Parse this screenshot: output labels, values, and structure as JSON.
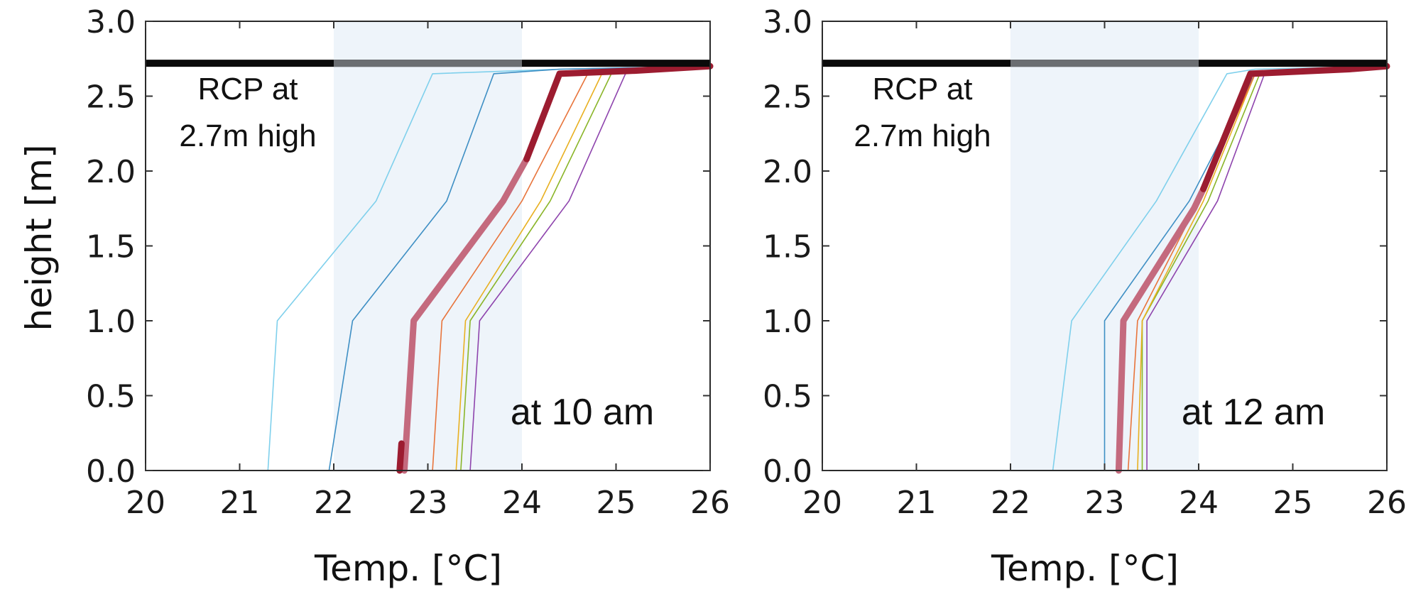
{
  "chart_data": [
    {
      "type": "line",
      "xlabel": "Temp. [°C]",
      "ylabel": "height [m]",
      "xlim": [
        20,
        26
      ],
      "ylim": [
        0,
        3.0
      ],
      "xticks": [
        "20",
        "21",
        "22",
        "23",
        "24",
        "25",
        "26"
      ],
      "yticks": [
        "0.0",
        "0.5",
        "1.0",
        "1.5",
        "2.0",
        "2.5",
        "3.0"
      ],
      "comfort_band": [
        22,
        24
      ],
      "ceiling_height": 2.72,
      "annotation": "RCP at 2.7m high",
      "time_label": "at 10 am",
      "series": [
        {
          "color": "#7fd0ec",
          "width": 1.6,
          "points": [
            [
              21.3,
              0.0
            ],
            [
              21.4,
              1.0
            ],
            [
              22.45,
              1.8
            ],
            [
              23.05,
              2.65
            ],
            [
              24.4,
              2.68
            ],
            [
              26.0,
              2.7
            ]
          ]
        },
        {
          "color": "#3e8fc4",
          "width": 1.6,
          "points": [
            [
              21.95,
              0.0
            ],
            [
              22.2,
              1.0
            ],
            [
              23.2,
              1.8
            ],
            [
              23.7,
              2.65
            ],
            [
              24.4,
              2.68
            ],
            [
              26.0,
              2.7
            ]
          ]
        },
        {
          "color": "#8e44ad",
          "width": 1.6,
          "points": [
            [
              23.45,
              0.0
            ],
            [
              23.55,
              1.0
            ],
            [
              24.5,
              1.8
            ],
            [
              25.1,
              2.65
            ],
            [
              25.5,
              2.68
            ],
            [
              26.0,
              2.7
            ]
          ]
        },
        {
          "color": "#8ab528",
          "width": 1.6,
          "points": [
            [
              23.35,
              0.0
            ],
            [
              23.45,
              1.0
            ],
            [
              24.3,
              1.8
            ],
            [
              24.95,
              2.65
            ],
            [
              25.5,
              2.68
            ],
            [
              26.0,
              2.7
            ]
          ]
        },
        {
          "color": "#e8b020",
          "width": 1.6,
          "points": [
            [
              23.3,
              0.0
            ],
            [
              23.4,
              1.0
            ],
            [
              24.2,
              1.8
            ],
            [
              24.85,
              2.65
            ],
            [
              25.5,
              2.68
            ],
            [
              26.0,
              2.7
            ]
          ]
        },
        {
          "color": "#e8743b",
          "width": 1.6,
          "points": [
            [
              23.05,
              0.0
            ],
            [
              23.15,
              1.0
            ],
            [
              24.0,
              1.8
            ],
            [
              24.7,
              2.65
            ],
            [
              25.5,
              2.68
            ],
            [
              26.0,
              2.7
            ]
          ]
        },
        {
          "color": "#c46a7e",
          "width": 9,
          "points": [
            [
              22.75,
              0.0
            ],
            [
              22.85,
              1.0
            ],
            [
              23.8,
              1.8
            ],
            [
              24.05,
              2.08
            ]
          ]
        },
        {
          "color": "#9c1c30",
          "width": 9,
          "points": [
            [
              22.7,
              0.0
            ],
            [
              22.72,
              0.18
            ]
          ]
        },
        {
          "color": "#9c1c30",
          "width": 9,
          "points": [
            [
              24.05,
              2.08
            ],
            [
              24.4,
              2.65
            ],
            [
              25.2,
              2.67
            ],
            [
              26.0,
              2.7
            ]
          ]
        }
      ]
    },
    {
      "type": "line",
      "xlabel": "Temp. [°C]",
      "ylabel": "",
      "xlim": [
        20,
        26
      ],
      "ylim": [
        0,
        3.0
      ],
      "xticks": [
        "20",
        "21",
        "22",
        "23",
        "24",
        "25",
        "26"
      ],
      "yticks": [
        "0.0",
        "0.5",
        "1.0",
        "1.5",
        "2.0",
        "2.5",
        "3.0"
      ],
      "comfort_band": [
        22,
        24
      ],
      "ceiling_height": 2.72,
      "annotation": "RCP at 2.7m high",
      "time_label": "at 12 am",
      "series": [
        {
          "color": "#7fd0ec",
          "width": 1.6,
          "points": [
            [
              22.45,
              0.0
            ],
            [
              22.65,
              1.0
            ],
            [
              23.55,
              1.8
            ],
            [
              24.3,
              2.65
            ],
            [
              24.6,
              2.68
            ],
            [
              26.0,
              2.7
            ]
          ]
        },
        {
          "color": "#3e8fc4",
          "width": 1.6,
          "points": [
            [
              23.0,
              0.0
            ],
            [
              23.0,
              1.0
            ],
            [
              23.9,
              1.8
            ],
            [
              24.6,
              2.65
            ],
            [
              25.5,
              2.68
            ],
            [
              26.0,
              2.7
            ]
          ]
        },
        {
          "color": "#8e44ad",
          "width": 1.6,
          "points": [
            [
              23.45,
              0.0
            ],
            [
              23.45,
              1.0
            ],
            [
              24.2,
              1.8
            ],
            [
              24.7,
              2.65
            ],
            [
              25.5,
              2.68
            ],
            [
              26.0,
              2.7
            ]
          ]
        },
        {
          "color": "#8ab528",
          "width": 1.6,
          "points": [
            [
              23.4,
              0.0
            ],
            [
              23.4,
              1.0
            ],
            [
              24.1,
              1.8
            ],
            [
              24.65,
              2.65
            ],
            [
              25.5,
              2.68
            ],
            [
              26.0,
              2.7
            ]
          ]
        },
        {
          "color": "#e8b020",
          "width": 1.6,
          "points": [
            [
              23.35,
              0.0
            ],
            [
              23.4,
              1.0
            ],
            [
              24.05,
              1.8
            ],
            [
              24.6,
              2.65
            ],
            [
              25.5,
              2.68
            ],
            [
              26.0,
              2.7
            ]
          ]
        },
        {
          "color": "#e8743b",
          "width": 1.6,
          "points": [
            [
              23.25,
              0.0
            ],
            [
              23.35,
              1.0
            ],
            [
              24.0,
              1.8
            ],
            [
              24.6,
              2.65
            ],
            [
              25.5,
              2.68
            ],
            [
              26.0,
              2.7
            ]
          ]
        },
        {
          "color": "#c46a7e",
          "width": 9,
          "points": [
            [
              23.15,
              0.0
            ],
            [
              23.2,
              1.0
            ],
            [
              23.95,
              1.75
            ],
            [
              24.05,
              1.88
            ]
          ]
        },
        {
          "color": "#9c1c30",
          "width": 9,
          "points": [
            [
              24.05,
              1.88
            ],
            [
              24.55,
              2.65
            ],
            [
              25.6,
              2.68
            ],
            [
              26.0,
              2.7
            ]
          ]
        }
      ]
    }
  ]
}
